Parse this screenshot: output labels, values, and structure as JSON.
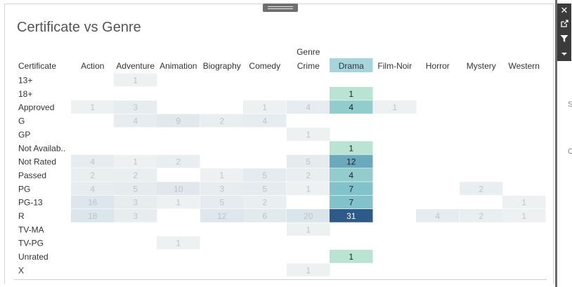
{
  "title": "Certificate vs Genre",
  "chart_data": {
    "type": "heatmap",
    "title": "Certificate vs Genre",
    "row_header": "Certificate",
    "column_group_label": "Genre",
    "columns": [
      "Action",
      "Adventure",
      "Animation",
      "Biography",
      "Comedy",
      "Crime",
      "Drama",
      "Film-Noir",
      "Horror",
      "Mystery",
      "Western"
    ],
    "rows": [
      "13+",
      "18+",
      "Approved",
      "G",
      "GP",
      "Not Availab..",
      "Not Rated",
      "Passed",
      "PG",
      "PG-13",
      "R",
      "TV-MA",
      "TV-PG",
      "Unrated",
      "X"
    ],
    "highlighted_column": "Drama",
    "cells": [
      {
        "row": "13+",
        "col": "Adventure",
        "value": 1
      },
      {
        "row": "18+",
        "col": "Drama",
        "value": 1
      },
      {
        "row": "Approved",
        "col": "Action",
        "value": 1
      },
      {
        "row": "Approved",
        "col": "Adventure",
        "value": 3
      },
      {
        "row": "Approved",
        "col": "Comedy",
        "value": 1
      },
      {
        "row": "Approved",
        "col": "Crime",
        "value": 4
      },
      {
        "row": "Approved",
        "col": "Drama",
        "value": 4
      },
      {
        "row": "Approved",
        "col": "Film-Noir",
        "value": 1
      },
      {
        "row": "G",
        "col": "Adventure",
        "value": 4
      },
      {
        "row": "G",
        "col": "Animation",
        "value": 9
      },
      {
        "row": "G",
        "col": "Biography",
        "value": 2
      },
      {
        "row": "G",
        "col": "Comedy",
        "value": 4
      },
      {
        "row": "GP",
        "col": "Crime",
        "value": 1
      },
      {
        "row": "Not Availab..",
        "col": "Drama",
        "value": 1
      },
      {
        "row": "Not Rated",
        "col": "Action",
        "value": 4
      },
      {
        "row": "Not Rated",
        "col": "Adventure",
        "value": 1
      },
      {
        "row": "Not Rated",
        "col": "Animation",
        "value": 2
      },
      {
        "row": "Not Rated",
        "col": "Crime",
        "value": 5
      },
      {
        "row": "Not Rated",
        "col": "Drama",
        "value": 12
      },
      {
        "row": "Passed",
        "col": "Action",
        "value": 2
      },
      {
        "row": "Passed",
        "col": "Adventure",
        "value": 2
      },
      {
        "row": "Passed",
        "col": "Biography",
        "value": 1
      },
      {
        "row": "Passed",
        "col": "Comedy",
        "value": 5
      },
      {
        "row": "Passed",
        "col": "Crime",
        "value": 2
      },
      {
        "row": "Passed",
        "col": "Drama",
        "value": 4
      },
      {
        "row": "PG",
        "col": "Action",
        "value": 4
      },
      {
        "row": "PG",
        "col": "Adventure",
        "value": 5
      },
      {
        "row": "PG",
        "col": "Animation",
        "value": 10
      },
      {
        "row": "PG",
        "col": "Biography",
        "value": 3
      },
      {
        "row": "PG",
        "col": "Comedy",
        "value": 5
      },
      {
        "row": "PG",
        "col": "Crime",
        "value": 1
      },
      {
        "row": "PG",
        "col": "Drama",
        "value": 7
      },
      {
        "row": "PG",
        "col": "Mystery",
        "value": 2
      },
      {
        "row": "PG-13",
        "col": "Action",
        "value": 16
      },
      {
        "row": "PG-13",
        "col": "Adventure",
        "value": 3
      },
      {
        "row": "PG-13",
        "col": "Animation",
        "value": 1
      },
      {
        "row": "PG-13",
        "col": "Biography",
        "value": 5
      },
      {
        "row": "PG-13",
        "col": "Comedy",
        "value": 2
      },
      {
        "row": "PG-13",
        "col": "Drama",
        "value": 7
      },
      {
        "row": "PG-13",
        "col": "Western",
        "value": 1
      },
      {
        "row": "R",
        "col": "Action",
        "value": 18
      },
      {
        "row": "R",
        "col": "Adventure",
        "value": 3
      },
      {
        "row": "R",
        "col": "Biography",
        "value": 12
      },
      {
        "row": "R",
        "col": "Comedy",
        "value": 6
      },
      {
        "row": "R",
        "col": "Crime",
        "value": 20
      },
      {
        "row": "R",
        "col": "Drama",
        "value": 31
      },
      {
        "row": "R",
        "col": "Horror",
        "value": 4
      },
      {
        "row": "R",
        "col": "Mystery",
        "value": 2
      },
      {
        "row": "R",
        "col": "Western",
        "value": 1
      },
      {
        "row": "TV-MA",
        "col": "Crime",
        "value": 1
      },
      {
        "row": "TV-PG",
        "col": "Animation",
        "value": 1
      },
      {
        "row": "Unrated",
        "col": "Drama",
        "value": 1
      },
      {
        "row": "X",
        "col": "Crime",
        "value": 1
      }
    ],
    "value_range": [
      1,
      31
    ],
    "colors": {
      "drama_low": "#b9e3d3",
      "drama_mid": "#7bbfca",
      "drama_high": "#2e5a8a",
      "faded_low": "#eef1f1",
      "faded_high": "#d4e1ea",
      "drama_text": "#222222",
      "drama_text_dark": "#ffffff",
      "faded_text": "#bfc4c6",
      "header_highlight": "#a6d6dc"
    }
  },
  "toolbar": {
    "close_icon": "close-icon",
    "popout_icon": "popout-icon",
    "filter_icon": "filter-icon",
    "menu_icon": "dropdown-icon"
  },
  "edge_labels": [
    "S",
    "C"
  ]
}
